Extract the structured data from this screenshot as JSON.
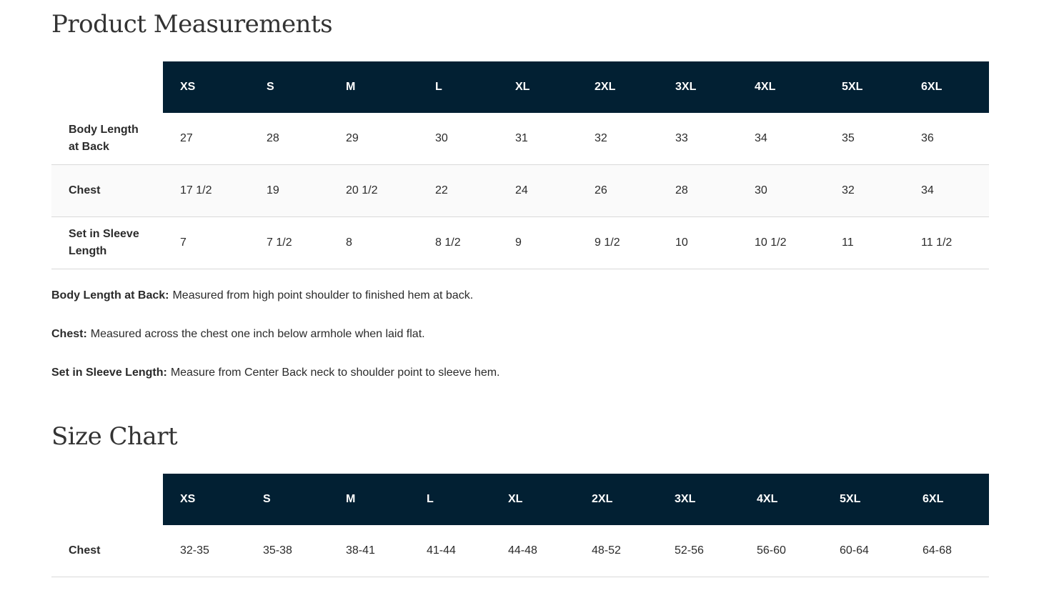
{
  "measurements": {
    "title": "Product Measurements",
    "table": {
      "header": [
        "XS",
        "S",
        "M",
        "L",
        "XL",
        "2XL",
        "3XL",
        "4XL",
        "5XL",
        "6XL"
      ],
      "rows": [
        {
          "label": "Body Length at Back",
          "values": [
            27,
            28,
            29,
            30,
            31,
            32,
            33,
            34,
            35,
            36
          ]
        },
        {
          "label": "Chest",
          "values": [
            "17 1/2",
            19,
            "20 1/2",
            22,
            24,
            26,
            28,
            30,
            32,
            34
          ]
        },
        {
          "label": "Set in Sleeve Length",
          "values": [
            7,
            "7 1/2",
            8,
            "8 1/2",
            9,
            "9 1/2",
            10,
            "10 1/2",
            11,
            "11 1/2"
          ]
        }
      ]
    },
    "notes": [
      {
        "label": "Body Length at Back:",
        "text": "Measured from high point shoulder to finished hem at back."
      },
      {
        "label": "Chest:",
        "text": "Measured across the chest one inch below armhole when laid flat."
      },
      {
        "label": "Set in Sleeve Length:",
        "text": "Measure from Center Back neck to shoulder point to sleeve hem."
      }
    ]
  },
  "size_chart": {
    "title": "Size Chart",
    "table": {
      "header": [
        "XS",
        "S",
        "M",
        "L",
        "XL",
        "2XL",
        "3XL",
        "4XL",
        "5XL",
        "6XL"
      ],
      "rows": [
        {
          "label": "Chest",
          "values": [
            "32-35",
            "35-38",
            "38-41",
            "41-44",
            "44-48",
            "48-52",
            "52-56",
            "56-60",
            "60-64",
            "64-68"
          ]
        }
      ]
    }
  }
}
